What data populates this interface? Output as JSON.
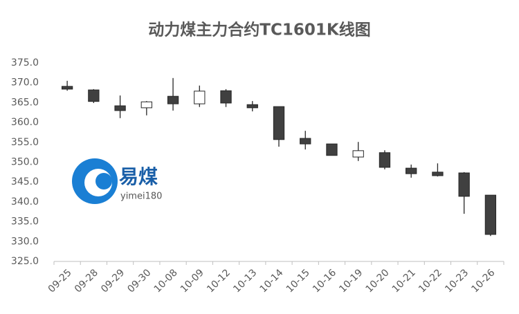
{
  "chart_data": {
    "type": "candlestick",
    "title": "动力煤主力合约TC1601K线图",
    "categories": [
      "09-25",
      "09-28",
      "09-29",
      "09-30",
      "10-08",
      "10-09",
      "10-12",
      "10-13",
      "10-14",
      "10-15",
      "10-16",
      "10-19",
      "10-20",
      "10-21",
      "10-22",
      "10-23",
      "10-26"
    ],
    "open": [
      369.1,
      368.2,
      364.2,
      363.7,
      366.6,
      364.7,
      368.0,
      364.5,
      364.0,
      356.0,
      354.6,
      351.3,
      352.4,
      348.5,
      347.5,
      347.3,
      341.7
    ],
    "high": [
      370.5,
      368.4,
      366.8,
      365.4,
      371.2,
      369.3,
      368.4,
      365.4,
      364.0,
      357.9,
      354.6,
      355.1,
      353.0,
      349.4,
      349.7,
      347.5,
      341.7
    ],
    "low": [
      368.0,
      364.9,
      361.1,
      361.8,
      363.0,
      363.9,
      363.9,
      362.8,
      353.9,
      353.2,
      351.7,
      350.3,
      348.2,
      346.1,
      346.4,
      337.0,
      331.4
    ],
    "close": [
      368.4,
      365.3,
      363.0,
      365.2,
      364.7,
      367.9,
      364.9,
      363.7,
      355.7,
      354.6,
      351.7,
      352.9,
      348.7,
      347.1,
      346.6,
      341.4,
      331.8
    ],
    "up_color": "#ffffff",
    "down_color": "#404040",
    "edge_color": "#262626",
    "ylim": [
      325,
      375
    ],
    "yticks": [
      {
        "value": 325,
        "label": "325.0"
      },
      {
        "value": 330,
        "label": "330.0"
      },
      {
        "value": 335,
        "label": "335.0"
      },
      {
        "value": 340,
        "label": "340.0"
      },
      {
        "value": 345,
        "label": "345.0"
      },
      {
        "value": 350,
        "label": "350.0"
      },
      {
        "value": 355,
        "label": "355.0"
      },
      {
        "value": 360,
        "label": "360.0"
      },
      {
        "value": 365,
        "label": "365.0"
      },
      {
        "value": 370,
        "label": "370.0"
      },
      {
        "value": 375,
        "label": "375.0"
      }
    ],
    "grid": false,
    "watermark": {
      "text": "易煤",
      "subtext": "yimei180"
    }
  }
}
